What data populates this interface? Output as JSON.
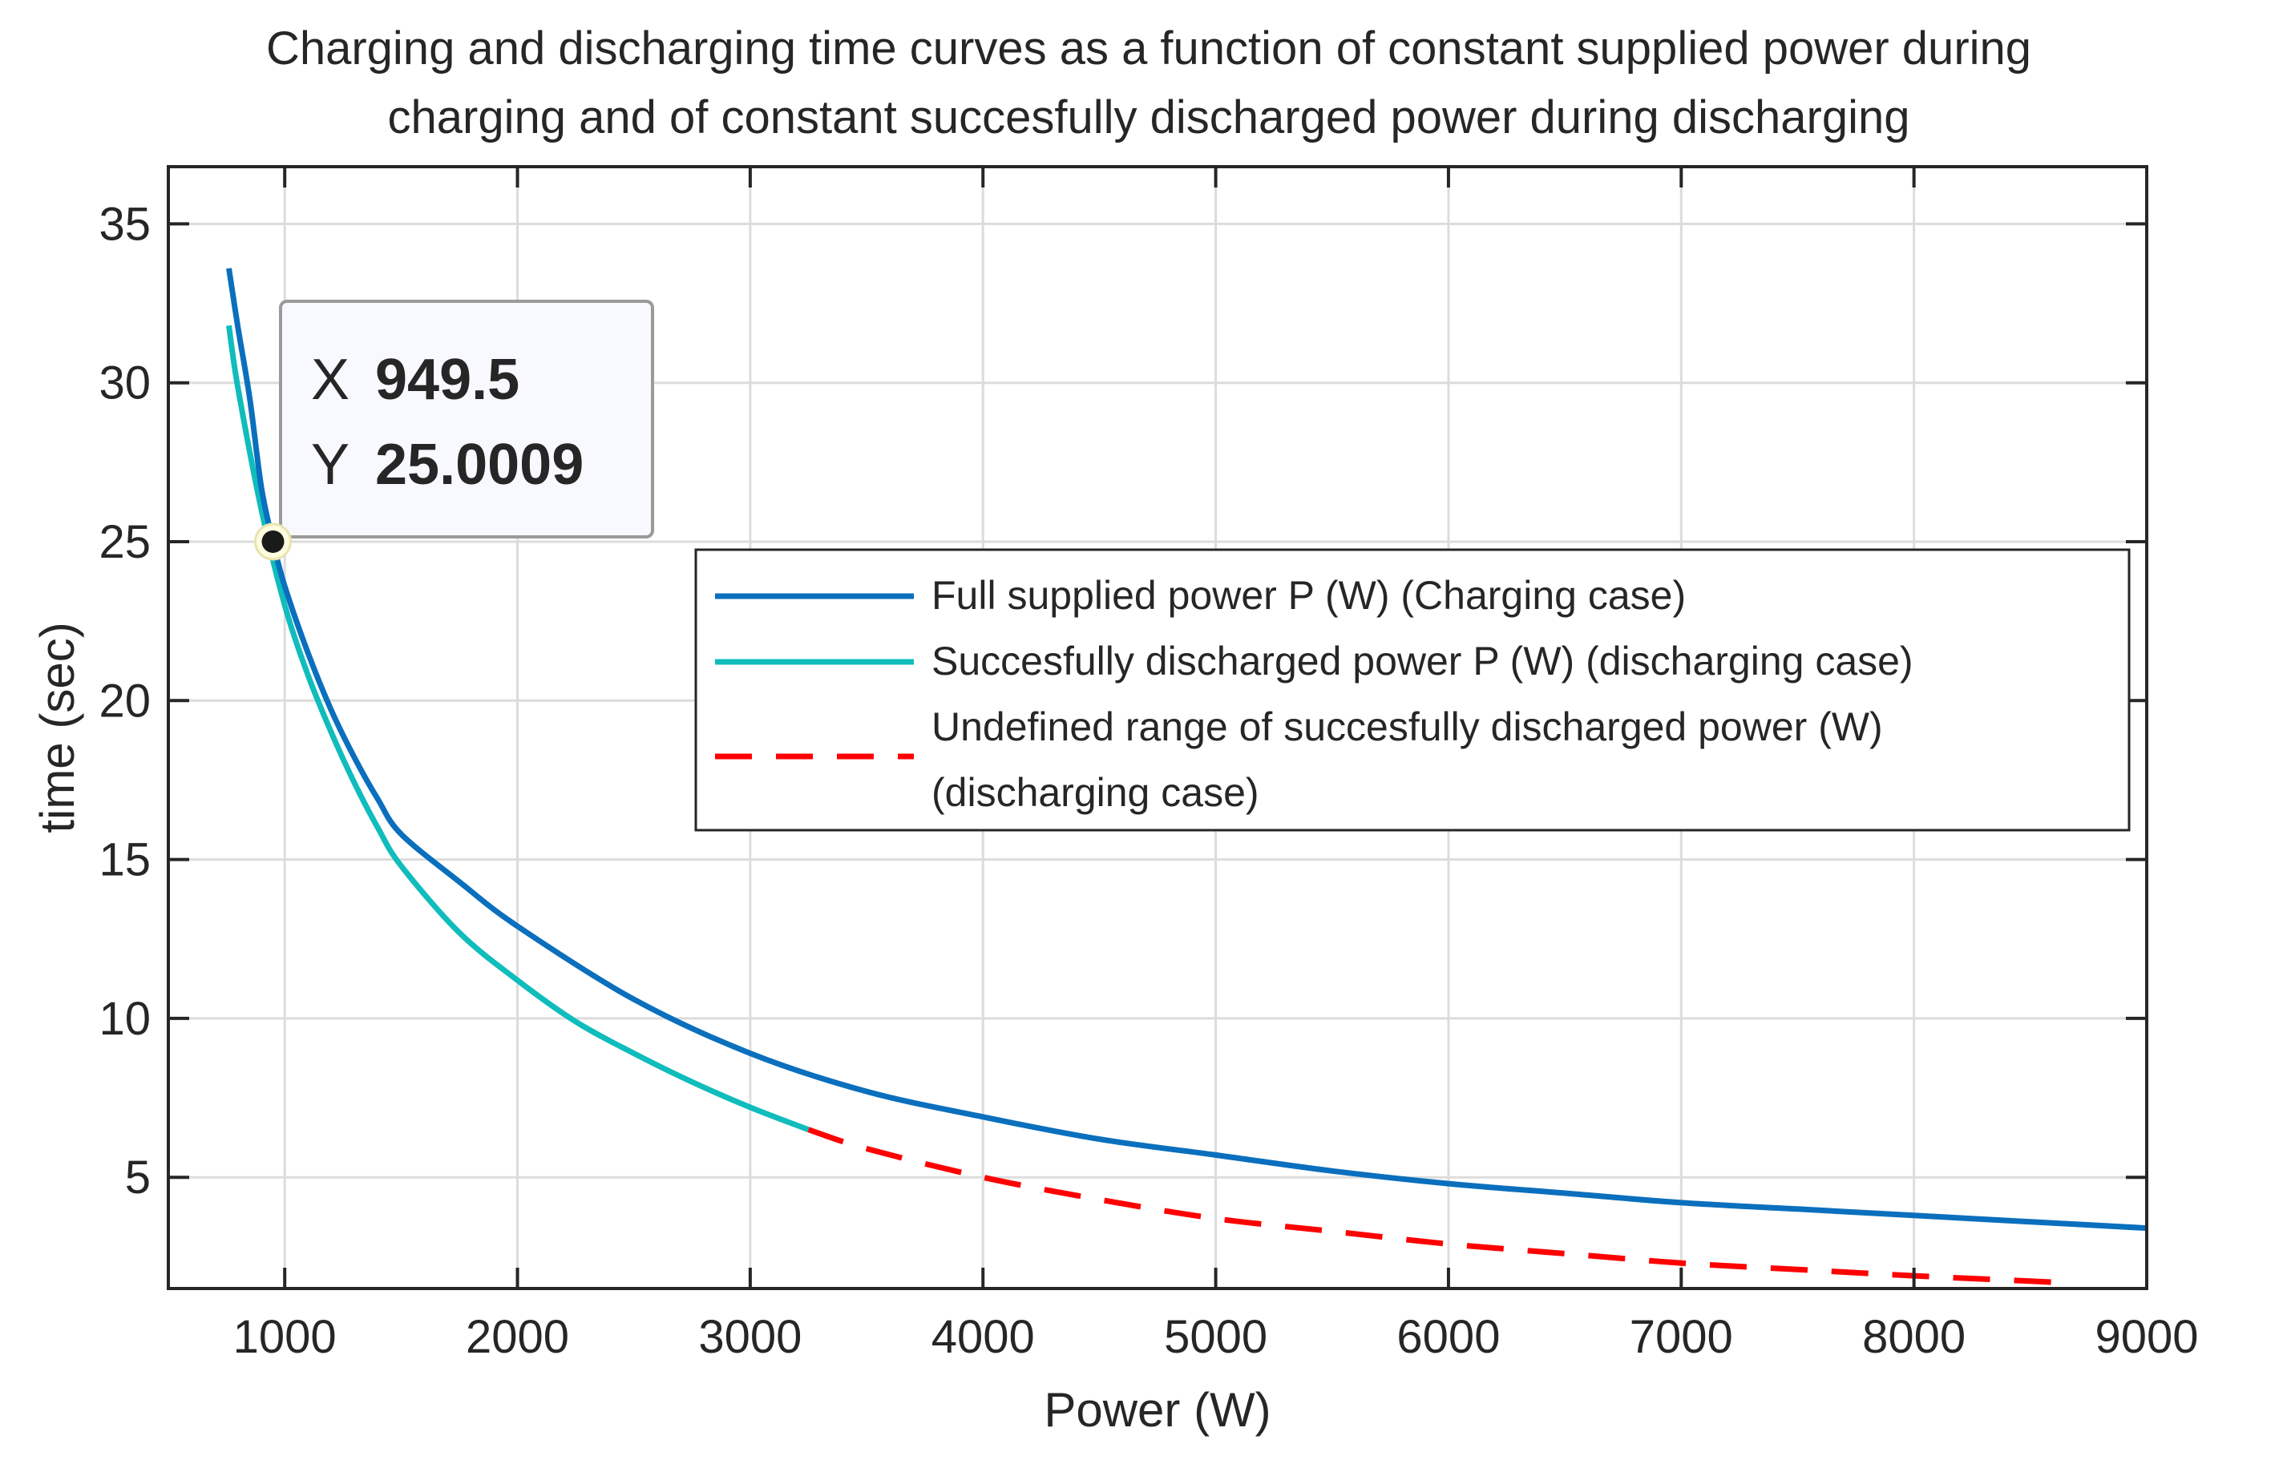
{
  "chart_data": {
    "type": "line",
    "title_lines": [
      "Charging and discharging time curves as a function of constant supplied power during",
      "charging and of constant succesfully discharged power during discharging"
    ],
    "xlabel": "Power (W)",
    "ylabel": "time (sec)",
    "xlim": [
      500,
      9000
    ],
    "ylim": [
      1.5,
      36.8
    ],
    "xticks": [
      1000,
      2000,
      3000,
      4000,
      5000,
      6000,
      7000,
      8000,
      9000
    ],
    "yticks": [
      5,
      10,
      15,
      20,
      25,
      30,
      35
    ],
    "grid": true,
    "legend_position": "right-middle",
    "series": [
      {
        "name": "Full supplied power P (W) (Charging case)",
        "color": "#0a6fbd",
        "style": "solid",
        "x": [
          760,
          800,
          850,
          900,
          949.5,
          1000,
          1100,
          1200,
          1300,
          1400,
          1500,
          1750,
          2000,
          2500,
          3000,
          3500,
          4000,
          4500,
          5000,
          5500,
          6000,
          6500,
          7000,
          7500,
          8000,
          8500,
          9000
        ],
        "y": [
          33.6,
          31.7,
          29.5,
          26.7,
          25.0,
          23.6,
          21.5,
          19.7,
          18.2,
          16.9,
          15.8,
          14.3,
          12.9,
          10.6,
          8.9,
          7.7,
          6.9,
          6.2,
          5.7,
          5.2,
          4.8,
          4.5,
          4.2,
          4.0,
          3.8,
          3.6,
          3.4
        ]
      },
      {
        "name": "Succesfully discharged power P (W) (discharging case)",
        "color": "#10bcbc",
        "style": "solid",
        "x": [
          760,
          800,
          900,
          1000,
          1100,
          1200,
          1300,
          1400,
          1500,
          1750,
          2000,
          2250,
          2500,
          2750,
          3000,
          3250
        ],
        "y": [
          31.8,
          29.8,
          26.0,
          23.0,
          20.8,
          19.0,
          17.4,
          16.0,
          14.8,
          12.7,
          11.2,
          9.9,
          8.9,
          8.0,
          7.2,
          6.5
        ]
      },
      {
        "name": "Undefined range of succesfully discharged power (W) (discharging case)",
        "legend_lines": [
          "Undefined range of succesfully discharged power (W)",
          "(discharging case)"
        ],
        "color": "#ff0000",
        "style": "dashed",
        "x": [
          3250,
          3500,
          4000,
          4500,
          5000,
          5500,
          6000,
          6500,
          7000,
          7500,
          8000,
          8600
        ],
        "y": [
          6.5,
          5.9,
          5.0,
          4.3,
          3.7,
          3.3,
          2.9,
          2.6,
          2.3,
          2.1,
          1.9,
          1.7
        ]
      }
    ],
    "datatip": {
      "x_label": "X",
      "x_value": "949.5",
      "y_label": "Y",
      "y_value": "25.0009",
      "point_x": 949.5,
      "point_y": 25.0009
    }
  }
}
